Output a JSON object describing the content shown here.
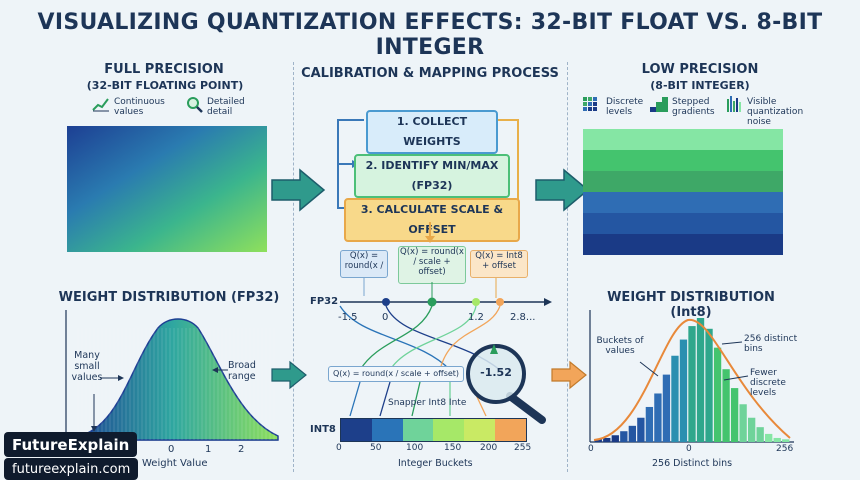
{
  "title": "VISUALIZING QUANTIZATION EFFECTS: 32-BIT FLOAT VS. 8-BIT INTEGER",
  "left": {
    "heading": "FULL PRECISION",
    "subheading": "(32-BIT FLOATING POINT)",
    "legend": [
      {
        "icon": "line-chart-icon",
        "text": "Continuous values"
      },
      {
        "icon": "magnifier-icon",
        "text": "Detailed detail"
      }
    ],
    "dist_title": "WEIGHT DISTRIBUTION (FP32)",
    "dist_labels": {
      "many_small": "Many small values",
      "broad": "Broad range",
      "xaxis": "Weight Value"
    },
    "dist_ticks": [
      "0",
      "1",
      "2"
    ]
  },
  "middle": {
    "heading": "CALIBRATION & MAPPING PROCESS",
    "steps": [
      "1. COLLECT WEIGHTS",
      "2. IDENTIFY MIN/MAX (FP32)",
      "3. CALCULATE SCALE & OFFSET"
    ],
    "notes": [
      "Q(x) = round(x /",
      "Q(x) = round(x / scale + offset)",
      "Q(x) = Int8 + offset"
    ],
    "fp32_label": "FP32",
    "fp32_ticks": [
      "-1.5",
      "0",
      "1.2",
      "2.8..."
    ],
    "formula": "Q(x) = round(x / scale + offset)",
    "magnifier_value": "-1.52",
    "snapper_label": "Snapper Int8 Inte",
    "int8_label": "INT8",
    "int8_ticks": [
      "0",
      "50",
      "100",
      "150",
      "200",
      "255"
    ],
    "int8_xlabel": "Integer Buckets",
    "bucket_colors": [
      "#1d3f8a",
      "#2a74b8",
      "#6fd39a",
      "#a6e868",
      "#c9ea64",
      "#f2a55a"
    ]
  },
  "right": {
    "heading": "LOW PRECISION",
    "subheading": "(8-BIT INTEGER)",
    "legend": [
      {
        "icon": "discrete-grid-icon",
        "text": "Discrete levels"
      },
      {
        "icon": "stepped-gradient-icon",
        "text": "Stepped gradients"
      },
      {
        "icon": "noise-icon",
        "text": "Visible quantization noise"
      }
    ],
    "band_colors": [
      "#85e6a4",
      "#44c46e",
      "#3ea867",
      "#2f6db4",
      "#2456a2",
      "#1a3a86"
    ],
    "dist_title": "WEIGHT DISTRIBUTION (Int8)",
    "dist_labels": {
      "buckets": "Buckets of values",
      "distinct": "256 distinct bins",
      "fewer": "Fewer discrete levels",
      "xaxis": "256 Distinct bins"
    },
    "dist_ticks": [
      "0",
      "0",
      "256"
    ],
    "bar_values": [
      2,
      3,
      5,
      8,
      12,
      18,
      26,
      36,
      50,
      64,
      76,
      86,
      92,
      84,
      70,
      54,
      40,
      28,
      18,
      11,
      6,
      3,
      2
    ]
  },
  "watermark": {
    "name": "FutureExplain",
    "url": "futureexplain.com"
  }
}
